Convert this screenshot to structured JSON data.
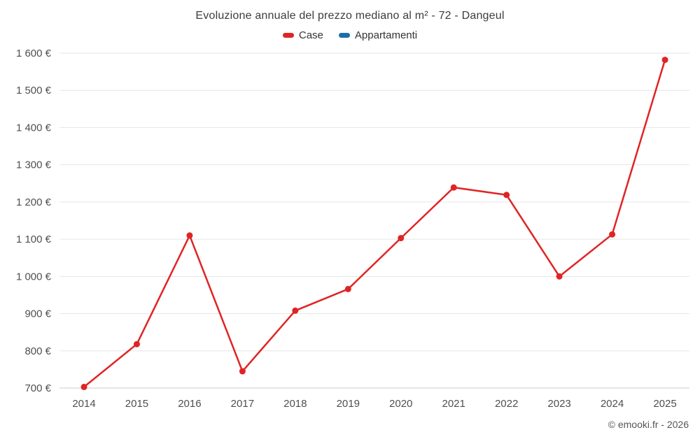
{
  "title": "Evoluzione annuale del prezzo mediano al m² - 72 - Dangeul",
  "legend": [
    {
      "label": "Case",
      "color": "#e02424"
    },
    {
      "label": "Appartamenti",
      "color": "#1a6fa8"
    }
  ],
  "footer": "© emooki.fr - 2026",
  "chart_data": {
    "type": "line",
    "x": [
      2014,
      2015,
      2016,
      2017,
      2018,
      2019,
      2020,
      2021,
      2022,
      2023,
      2024,
      2025
    ],
    "series": [
      {
        "name": "Case",
        "color": "#e02424",
        "values": [
          703,
          818,
          1110,
          745,
          908,
          966,
          1103,
          1239,
          1219,
          1000,
          1113,
          1582
        ]
      },
      {
        "name": "Appartamenti",
        "color": "#1a6fa8",
        "values": []
      }
    ],
    "title": "Evoluzione annuale del prezzo mediano al m² - 72 - Dangeul",
    "xlabel": "",
    "ylabel": "",
    "ylim": [
      700,
      1600
    ],
    "ytick_step": 100,
    "ytick_suffix": " €",
    "grid": true,
    "legend_position": "top",
    "grid_color": "#e6e6e6",
    "axis_line_color": "#cccccc"
  }
}
